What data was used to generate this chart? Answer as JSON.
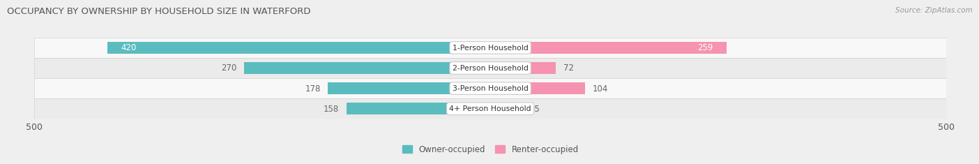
{
  "title": "OCCUPANCY BY OWNERSHIP BY HOUSEHOLD SIZE IN WATERFORD",
  "source": "Source: ZipAtlas.com",
  "categories": [
    "1-Person Household",
    "2-Person Household",
    "3-Person Household",
    "4+ Person Household"
  ],
  "owner_values": [
    420,
    270,
    178,
    158
  ],
  "renter_values": [
    259,
    72,
    104,
    35
  ],
  "owner_color": "#5bbcbf",
  "renter_color": "#f593b0",
  "owner_label": "Owner-occupied",
  "renter_label": "Renter-occupied",
  "axis_max": 500,
  "bg_color": "#efefef",
  "row_bg_even": "#f8f8f8",
  "row_bg_odd": "#ebebeb",
  "title_color": "#555555",
  "source_color": "#999999",
  "value_color_inside": "#ffffff",
  "value_color_outside": "#666666",
  "bar_height": 0.6
}
